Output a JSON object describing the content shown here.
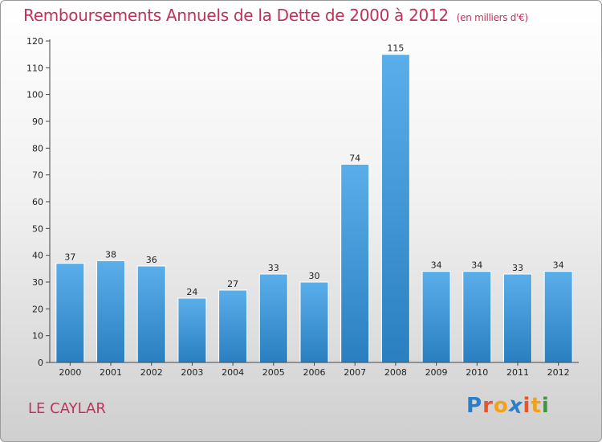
{
  "chart_data": {
    "type": "bar",
    "title": "Remboursements Annuels de la Dette de 2000 à 2012",
    "unit_label": "(en milliers d'€)",
    "categories": [
      "2000",
      "2001",
      "2002",
      "2003",
      "2004",
      "2005",
      "2006",
      "2007",
      "2008",
      "2009",
      "2010",
      "2011",
      "2012"
    ],
    "values": [
      37,
      38,
      36,
      24,
      27,
      33,
      30,
      74,
      115,
      34,
      34,
      33,
      34
    ],
    "data_labels": [
      "37",
      "38",
      "36",
      "24",
      "27",
      "33",
      "30",
      "74",
      "115",
      "34",
      "34",
      "33",
      "34"
    ],
    "ylim": [
      0,
      120
    ],
    "yticks": [
      "0",
      "10",
      "20",
      "30",
      "40",
      "50",
      "60",
      "70",
      "80",
      "90",
      "100",
      "110",
      "120"
    ],
    "xlabel": "",
    "ylabel": "",
    "grid": false,
    "legend": "none"
  },
  "footer": {
    "commune": "LE CAYLAR",
    "logo": "Proxiti",
    "logo_letters": [
      "P",
      "r",
      "o",
      "x",
      "i",
      "t",
      "i"
    ]
  },
  "colors": {
    "title": "#c0325a",
    "bar_top": "#5aaeea",
    "bar_bottom": "#2a7fc0",
    "axis": "#444444",
    "logo": [
      "#2a7fc8",
      "#e8542b",
      "#f2a21a",
      "#2a7fc8",
      "#e8542b",
      "#f2a21a",
      "#3a9a3a"
    ]
  }
}
